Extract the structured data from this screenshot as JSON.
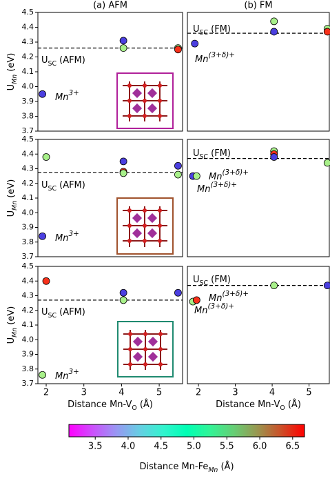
{
  "chart_data": [
    {
      "type": "scatter",
      "title": "(a) AFM",
      "xlim": [
        1.78,
        5.62
      ],
      "ylim": [
        3.7,
        4.5
      ],
      "yticks": [
        3.7,
        3.8,
        3.9,
        {
          "value": 4,
          "label": "4.0"
        },
        4.1,
        4.2,
        4.3,
        4.4,
        4.5
      ],
      "ylabel": {
        "main": "U",
        "sub": "Mn",
        "rest": "(eV)"
      },
      "x": [
        1.9,
        4.05,
        4.05,
        5.5,
        5.5
      ],
      "y": [
        3.95,
        4.31,
        4.26,
        4.26,
        4.25
      ],
      "colors": [
        "#4b3fe0",
        "#4b3fe0",
        "#a8f08a",
        "#a8f08a",
        "#f8311a"
      ],
      "reference": {
        "value": 4.26,
        "label": {
          "main": "U",
          "sub": "SC",
          "rest": "(AFM)"
        }
      },
      "annotations": [
        {
          "main": "Mn",
          "sup": "3+"
        }
      ],
      "inset_color": "#b0209a"
    },
    {
      "type": "scatter",
      "title": "(b) FM",
      "xlim": [
        1.7,
        5.55
      ],
      "ylim": [
        3.7,
        4.5
      ],
      "x": [
        1.9,
        4.05,
        4.05,
        5.5,
        5.5
      ],
      "y": [
        4.29,
        4.44,
        4.37,
        4.39,
        4.37
      ],
      "colors": [
        "#4b3fe0",
        "#a8f08a",
        "#4b3fe0",
        "#a8f08a",
        "#f8311a"
      ],
      "reference": {
        "value": 4.36,
        "label": {
          "main": "U",
          "sub": "SC",
          "rest": "(FM)"
        }
      },
      "annotations": [
        {
          "main": "Mn",
          "sup": "(3+δ)+"
        }
      ]
    },
    {
      "type": "scatter",
      "xlim": [
        1.78,
        5.62
      ],
      "ylim": [
        3.7,
        4.5
      ],
      "yticks": [
        3.7,
        3.8,
        3.9,
        {
          "value": 4,
          "label": "4.0"
        },
        4.1,
        4.2,
        4.3,
        4.4,
        4.5
      ],
      "ylabel": {
        "main": "U",
        "sub": "Mn",
        "rest": "(eV)"
      },
      "x": [
        2.0,
        4.05,
        4.05,
        4.05,
        5.5,
        5.5,
        1.9
      ],
      "y": [
        4.38,
        4.35,
        4.28,
        4.27,
        4.32,
        4.26,
        3.84
      ],
      "colors": [
        "#a8f08a",
        "#4b3fe0",
        "#f8311a",
        "#a8f08a",
        "#4b3fe0",
        "#a8f08a",
        "#4b3fe0"
      ],
      "reference": {
        "value": 4.275,
        "label": {
          "main": "U",
          "sub": "SC",
          "rest": "(AFM)"
        }
      },
      "annotations": [
        {
          "main": "Mn",
          "sup": "3+"
        }
      ],
      "inset_color": "#a0522d"
    },
    {
      "type": "scatter",
      "xlim": [
        1.7,
        5.55
      ],
      "ylim": [
        3.7,
        4.5
      ],
      "x": [
        1.85,
        1.95,
        4.05,
        4.05,
        4.05,
        5.5
      ],
      "y": [
        4.25,
        4.25,
        4.42,
        4.4,
        4.38,
        4.34
      ],
      "colors": [
        "#4b3fe0",
        "#a8f08a",
        "#a8f08a",
        "#f8311a",
        "#4b3fe0",
        "#a8f08a"
      ],
      "reference": {
        "value": 4.37,
        "label": {
          "main": "U",
          "sub": "SC",
          "rest": "(FM)"
        }
      },
      "annotations": [
        {
          "main": "Mn",
          "sup": "(3+δ)+"
        },
        {
          "main": "Mn",
          "sup": "(3+δ)+"
        }
      ]
    },
    {
      "type": "scatter",
      "xlim": [
        1.78,
        5.62
      ],
      "ylim": [
        3.7,
        4.5
      ],
      "yticks": [
        3.7,
        3.8,
        3.9,
        {
          "value": 4,
          "label": "4.0"
        },
        4.1,
        4.2,
        4.3,
        4.4,
        4.5
      ],
      "xticks": [
        2,
        3,
        4,
        5
      ],
      "ylabel": {
        "main": "U",
        "sub": "Mn",
        "rest": "(eV)"
      },
      "xlabel": {
        "main": "Distance Mn-V",
        "sub": "O",
        "rest": "(Å)"
      },
      "x": [
        2.0,
        4.05,
        4.05,
        5.5,
        1.9
      ],
      "y": [
        4.4,
        4.32,
        4.27,
        4.32,
        3.76
      ],
      "colors": [
        "#f8311a",
        "#4b3fe0",
        "#a8f08a",
        "#4b3fe0",
        "#a8f08a"
      ],
      "reference": {
        "value": 4.27,
        "label": {
          "main": "U",
          "sub": "SC",
          "rest": "(AFM)"
        }
      },
      "annotations": [
        {
          "main": "Mn",
          "sup": "3+"
        }
      ],
      "inset_color": "#1f8a70"
    },
    {
      "type": "scatter",
      "xlim": [
        1.7,
        5.55
      ],
      "ylim": [
        3.7,
        4.5
      ],
      "xticks": [
        2,
        3,
        4,
        5
      ],
      "xlabel": {
        "main": "Distance Mn-V",
        "sub": "O",
        "rest": "(Å)"
      },
      "x": [
        1.85,
        1.95,
        4.05,
        5.5
      ],
      "y": [
        4.26,
        4.27,
        4.37,
        4.37
      ],
      "colors": [
        "#a8f08a",
        "#f8311a",
        "#a8f08a",
        "#4b3fe0"
      ],
      "reference": {
        "value": 4.37,
        "label": {
          "main": "U",
          "sub": "SC",
          "rest": "(FM)"
        }
      },
      "annotations": [
        {
          "main": "Mn",
          "sup": "(3+δ)+"
        },
        {
          "main": "Mn",
          "sup": "(3+δ)+"
        }
      ]
    },
    {
      "type": "colorbar",
      "colormap": "rainbow",
      "clim": [
        3.1,
        6.68
      ],
      "ticks": [
        3.5,
        {
          "value": 4,
          "label": "4.0"
        },
        4.5,
        {
          "value": 5,
          "label": "5.0"
        },
        5.5,
        {
          "value": 6,
          "label": "6.0"
        },
        6.5
      ],
      "label": {
        "main": "Distance Mn-Fe",
        "sub": "Mn",
        "rest": "(Å)"
      }
    }
  ]
}
